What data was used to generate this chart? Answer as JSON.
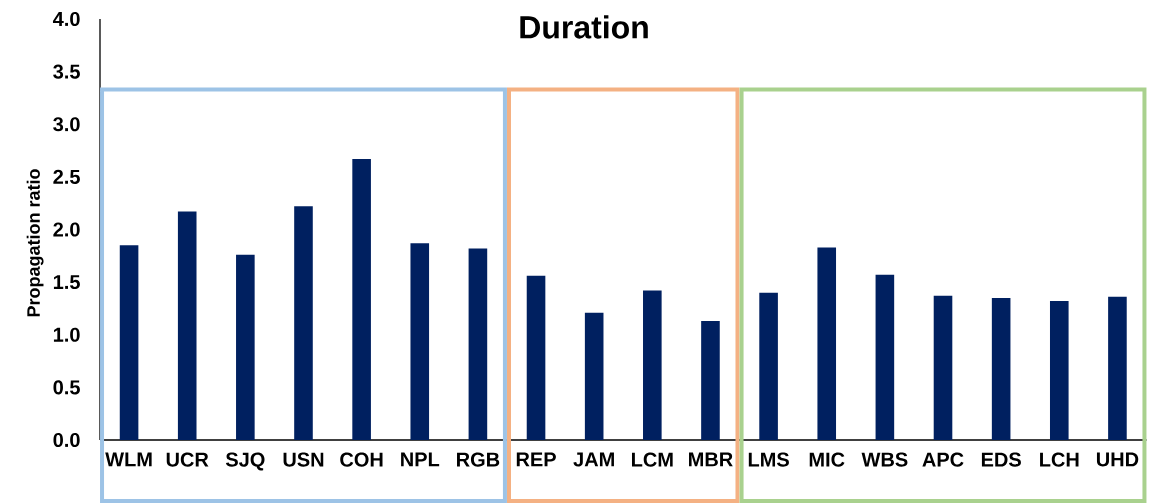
{
  "chart_data": {
    "type": "bar",
    "title": "Duration",
    "ylabel": "Propagation ratio",
    "categories": [
      "WLM",
      "UCR",
      "SJQ",
      "USN",
      "COH",
      "NPL",
      "RGB",
      "REP",
      "JAM",
      "LCM",
      "MBR",
      "LMS",
      "MIC",
      "WBS",
      "APC",
      "EDS",
      "LCH",
      "UHD"
    ],
    "values": [
      1.85,
      2.17,
      1.76,
      2.22,
      2.67,
      1.87,
      1.82,
      1.56,
      1.21,
      1.42,
      1.13,
      1.4,
      1.83,
      1.57,
      1.37,
      1.35,
      1.32,
      1.36
    ],
    "color": "#002060",
    "ylim": [
      0,
      4
    ],
    "yticks": [
      {
        "value": 0,
        "label": "0.0"
      },
      {
        "value": 0.5,
        "label": "0.5"
      },
      {
        "value": 1,
        "label": "1.0"
      },
      {
        "value": 1.5,
        "label": "1.5"
      },
      {
        "value": 2,
        "label": "2.0"
      },
      {
        "value": 2.5,
        "label": "2.5"
      },
      {
        "value": 3,
        "label": "3.0"
      },
      {
        "value": 3.5,
        "label": "3.5"
      },
      {
        "value": 4,
        "label": "4.0"
      }
    ]
  }
}
